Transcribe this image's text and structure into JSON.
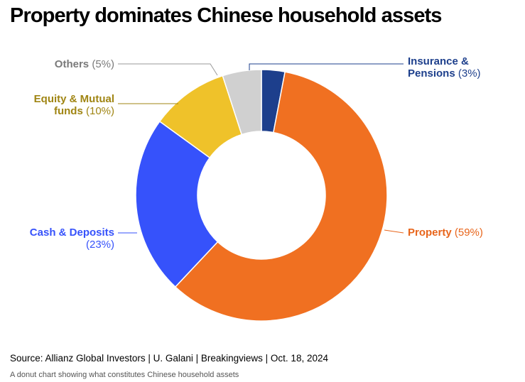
{
  "title": "Property dominates Chinese household assets",
  "source": "Source: Allianz Global Investors | U. Galani | Breakingviews | Oct. 18, 2024",
  "caption": "A donut chart showing what constitutes Chinese household assets",
  "chart_data": {
    "type": "pie",
    "donut": true,
    "title": "Property dominates Chinese household assets",
    "slices": [
      {
        "name": "Insurance & Pensions",
        "label": "Insurance & Pensions",
        "pct_label": "(3%)",
        "value": 3,
        "color": "#1d3f8c"
      },
      {
        "name": "Property",
        "label": "Property",
        "pct_label": "(59%)",
        "value": 59,
        "color": "#f07021"
      },
      {
        "name": "Cash & Deposits",
        "label": "Cash & Deposits",
        "pct_label": "(23%)",
        "value": 23,
        "color": "#3652fb"
      },
      {
        "name": "Equity & Mutual funds",
        "label": "Equity & Mutual funds",
        "pct_label": "(10%)",
        "value": 10,
        "color": "#efc22a"
      },
      {
        "name": "Others",
        "label": "Others",
        "pct_label": "(5%)",
        "value": 5,
        "color": "#d0d0d0"
      }
    ],
    "label_colors": {
      "Insurance & Pensions": "#1d3f8c",
      "Property": "#e8651b",
      "Cash & Deposits": "#3652fb",
      "Equity & Mutual funds": "#a08513",
      "Others": "#7a7a7a"
    }
  },
  "labels": {
    "insurance_line1": "Insurance &",
    "insurance_line2": "Pensions",
    "insurance_pct": "(3%)",
    "property": "Property",
    "property_pct": "(59%)",
    "cash_line1": "Cash & Deposits",
    "cash_pct": "(23%)",
    "equity_line1": "Equity & Mutual",
    "equity_line2": "funds",
    "equity_pct": "(10%)",
    "others": "Others",
    "others_pct": "(5%)"
  }
}
